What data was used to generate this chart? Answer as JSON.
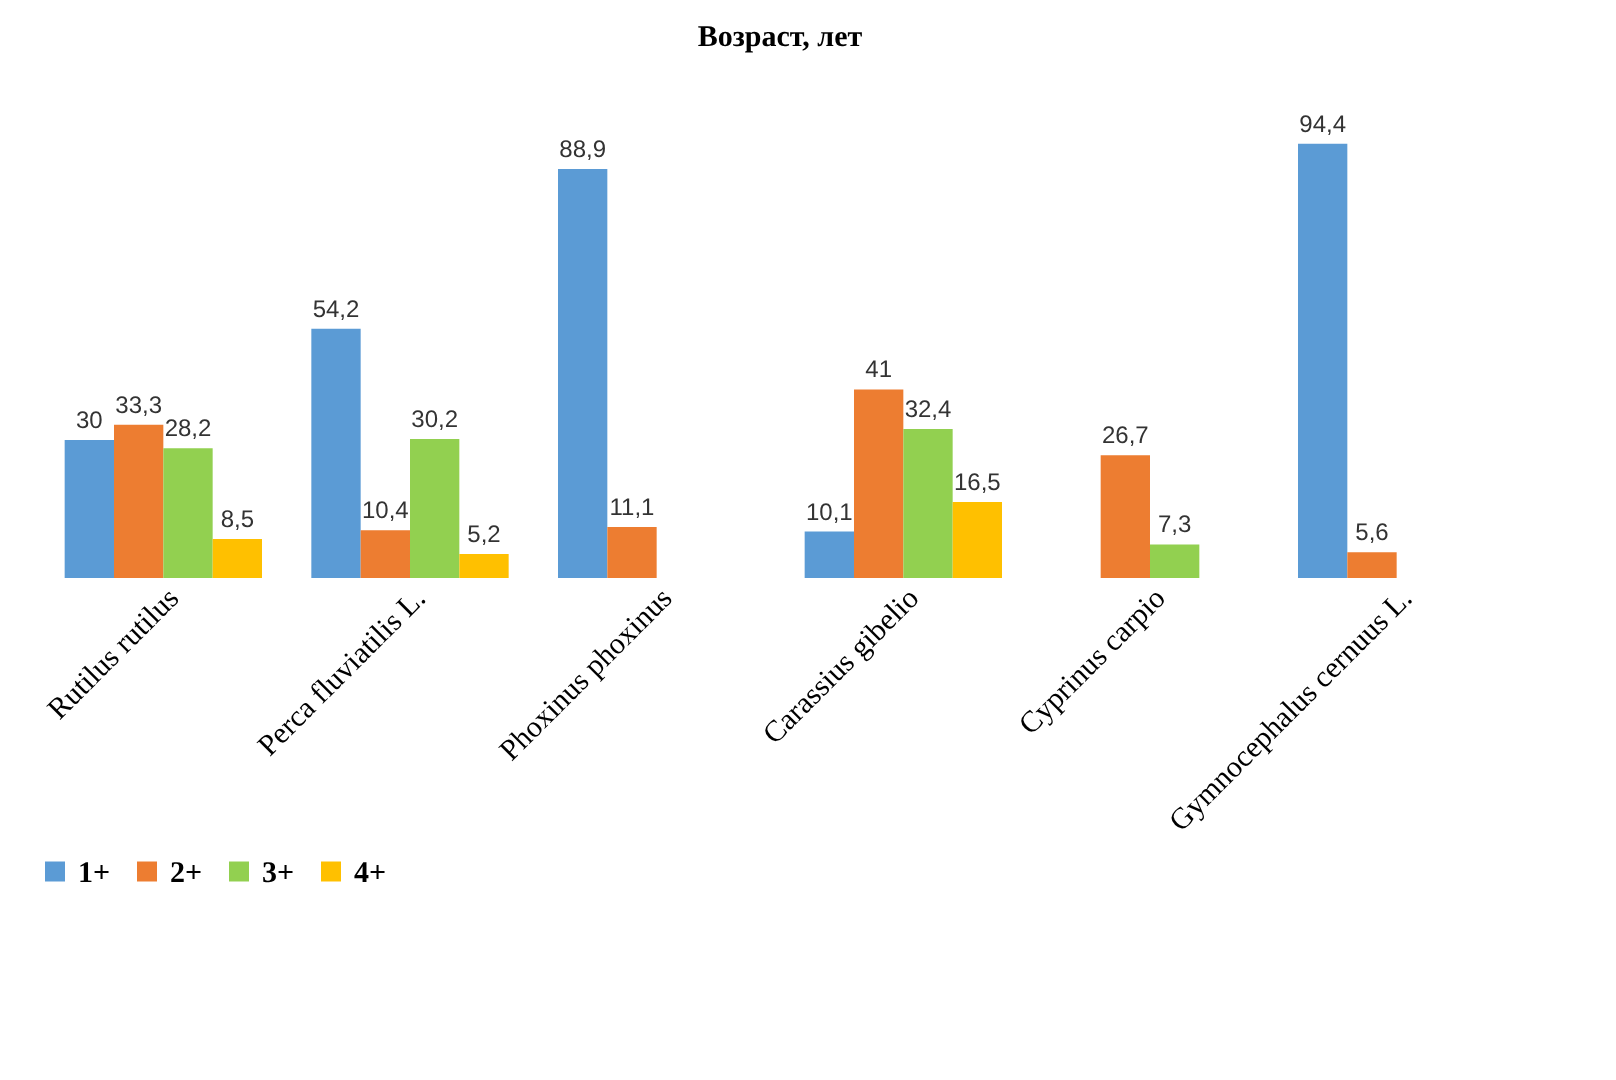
{
  "chart_data": {
    "type": "bar",
    "title": "Возраст, лет",
    "categories": [
      "Rutilus rutilus",
      "Perca fluviatilis L.",
      "Phoxinus phoxinus",
      "Carassius gibelio",
      "Cyprinus carpio",
      "Gymnocephalus cernuus L."
    ],
    "series": [
      {
        "name": "1+",
        "color": "#5b9bd5",
        "values": [
          30,
          54.2,
          88.9,
          10.1,
          null,
          94.4
        ],
        "value_labels": [
          "30",
          "54,2",
          "88,9",
          "10,1",
          null,
          "94,4"
        ]
      },
      {
        "name": "2+",
        "color": "#ed7d31",
        "values": [
          33.3,
          10.4,
          11.1,
          41,
          26.7,
          5.6
        ],
        "value_labels": [
          "33,3",
          "10,4",
          "11,1",
          "41",
          "26,7",
          "5,6"
        ]
      },
      {
        "name": "3+",
        "color": "#92d050",
        "values": [
          28.2,
          30.2,
          null,
          32.4,
          7.3,
          null
        ],
        "value_labels": [
          "28,2",
          "30,2",
          null,
          "32,4",
          "7,3",
          null
        ]
      },
      {
        "name": "4+",
        "color": "#ffc000",
        "values": [
          8.5,
          5.2,
          null,
          16.5,
          null,
          null
        ],
        "value_labels": [
          "8,5",
          "5,2",
          null,
          "16,5",
          null,
          null
        ]
      }
    ],
    "legend": "bottom",
    "grid": false
  }
}
